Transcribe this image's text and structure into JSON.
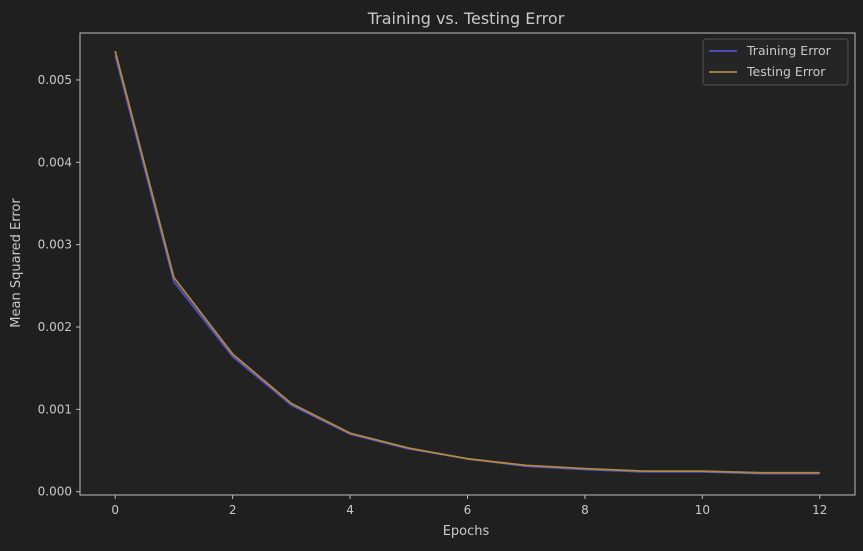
{
  "chart_data": {
    "type": "line",
    "title": "Training vs. Testing Error",
    "xlabel": "Epochs",
    "ylabel": "Mean Squared Error",
    "x": [
      0,
      1,
      2,
      3,
      4,
      5,
      6,
      7,
      8,
      9,
      10,
      11,
      12
    ],
    "xticks": [
      0,
      2,
      4,
      6,
      8,
      10,
      12
    ],
    "xtick_labels": [
      "0",
      "2",
      "4",
      "6",
      "8",
      "10",
      "12"
    ],
    "yticks": [
      0.0,
      0.001,
      0.002,
      0.003,
      0.004,
      0.005
    ],
    "ytick_labels": [
      "0.000",
      "0.001",
      "0.002",
      "0.003",
      "0.004",
      "0.005"
    ],
    "xlim": [
      -0.6,
      12.6
    ],
    "ylim": [
      -4e-05,
      0.00557
    ],
    "grid": true,
    "legend_position": "top-right",
    "series": [
      {
        "name": "Training Error",
        "color": "#5050c8",
        "values": [
          0.0053,
          0.00255,
          0.00164,
          0.00105,
          0.0007,
          0.00052,
          0.0004,
          0.00031,
          0.00027,
          0.00024,
          0.00024,
          0.00022,
          0.00022
        ]
      },
      {
        "name": "Testing Error",
        "color": "#b08840",
        "values": [
          0.00535,
          0.0026,
          0.00167,
          0.00107,
          0.00071,
          0.00053,
          0.0004,
          0.00032,
          0.00028,
          0.00025,
          0.00025,
          0.00023,
          0.00023
        ]
      }
    ]
  }
}
